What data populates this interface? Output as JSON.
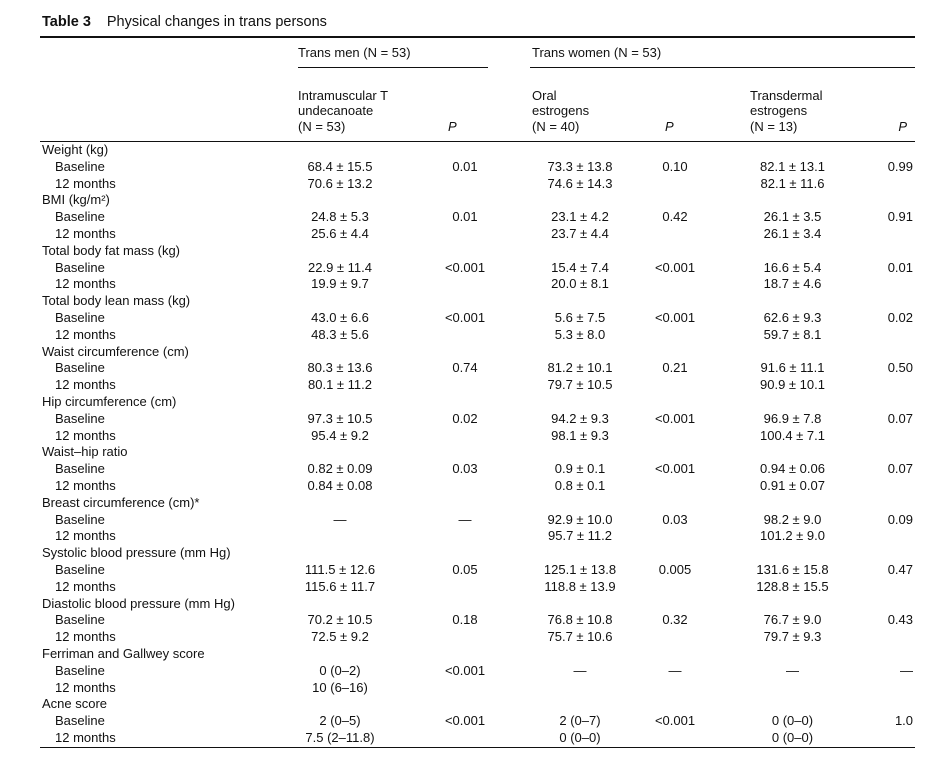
{
  "title": {
    "label": "Table 3",
    "text": "Physical changes in trans persons"
  },
  "header": {
    "groups": [
      {
        "label": "Trans men (N = 53)"
      },
      {
        "label": "Trans women (N = 53)"
      }
    ],
    "columns": [
      {
        "lines": [
          ""
        ],
        "italic": false
      },
      {
        "lines": [
          "Intramuscular T",
          "undecanoate",
          "(N = 53)"
        ],
        "italic": false
      },
      {
        "lines": [
          "P"
        ],
        "italic": true
      },
      {
        "lines": [
          "Oral",
          "estrogens",
          "(N = 40)"
        ],
        "italic": false
      },
      {
        "lines": [
          "P"
        ],
        "italic": true
      },
      {
        "lines": [
          "Transdermal",
          "estrogens",
          "(N = 13)"
        ],
        "italic": false
      },
      {
        "lines": [
          "P"
        ],
        "italic": true
      }
    ]
  },
  "rows": [
    {
      "type": "category",
      "label": "Weight (kg)"
    },
    {
      "type": "data",
      "label": "Baseline",
      "values": [
        "68.4 ± 15.5",
        "0.01",
        "73.3 ± 13.8",
        "0.10",
        "82.1 ± 13.1",
        "0.99"
      ]
    },
    {
      "type": "data",
      "label": "12 months",
      "values": [
        "70.6 ± 13.2",
        "",
        "74.6 ± 14.3",
        "",
        "82.1 ± 11.6",
        ""
      ]
    },
    {
      "type": "category",
      "label": "BMI (kg/m²)"
    },
    {
      "type": "data",
      "label": "Baseline",
      "values": [
        "24.8 ± 5.3",
        "0.01",
        "23.1 ± 4.2",
        "0.42",
        "26.1 ± 3.5",
        "0.91"
      ]
    },
    {
      "type": "data",
      "label": "12 months",
      "values": [
        "25.6 ± 4.4",
        "",
        "23.7 ± 4.4",
        "",
        "26.1 ± 3.4",
        ""
      ]
    },
    {
      "type": "category",
      "label": "Total body fat mass (kg)"
    },
    {
      "type": "data",
      "label": "Baseline",
      "values": [
        "22.9 ± 11.4",
        "<0.001",
        "15.4 ± 7.4",
        "<0.001",
        "16.6 ± 5.4",
        "0.01"
      ]
    },
    {
      "type": "data",
      "label": "12 months",
      "values": [
        "19.9 ± 9.7",
        "",
        "20.0 ± 8.1",
        "",
        "18.7 ± 4.6",
        ""
      ]
    },
    {
      "type": "category",
      "label": "Total body lean mass (kg)"
    },
    {
      "type": "data",
      "label": "Baseline",
      "values": [
        "43.0 ± 6.6",
        "<0.001",
        "5.6 ± 7.5",
        "<0.001",
        "62.6 ± 9.3",
        "0.02"
      ]
    },
    {
      "type": "data",
      "label": "12 months",
      "values": [
        "48.3 ± 5.6",
        "",
        "5.3 ± 8.0",
        "",
        "59.7 ± 8.1",
        ""
      ]
    },
    {
      "type": "category",
      "label": "Waist circumference (cm)"
    },
    {
      "type": "data",
      "label": "Baseline",
      "values": [
        "80.3 ± 13.6",
        "0.74",
        "81.2 ± 10.1",
        "0.21",
        "91.6 ± 11.1",
        "0.50"
      ]
    },
    {
      "type": "data",
      "label": "12 months",
      "values": [
        "80.1 ± 11.2",
        "",
        "79.7 ± 10.5",
        "",
        "90.9 ± 10.1",
        ""
      ]
    },
    {
      "type": "category",
      "label": "Hip circumference (cm)"
    },
    {
      "type": "data",
      "label": "Baseline",
      "values": [
        "97.3 ± 10.5",
        "0.02",
        "94.2 ± 9.3",
        "<0.001",
        "96.9 ± 7.8",
        "0.07"
      ]
    },
    {
      "type": "data",
      "label": "12 months",
      "values": [
        "95.4 ± 9.2",
        "",
        "98.1 ± 9.3",
        "",
        "100.4 ± 7.1",
        ""
      ]
    },
    {
      "type": "category",
      "label": "Waist–hip ratio"
    },
    {
      "type": "data",
      "label": "Baseline",
      "values": [
        "0.82 ± 0.09",
        "0.03",
        "0.9 ± 0.1",
        "<0.001",
        "0.94 ± 0.06",
        "0.07"
      ]
    },
    {
      "type": "data",
      "label": "12 months",
      "values": [
        "0.84 ± 0.08",
        "",
        "0.8 ± 0.1",
        "",
        "0.91 ± 0.07",
        ""
      ]
    },
    {
      "type": "category",
      "label": "Breast circumference (cm)*"
    },
    {
      "type": "data",
      "label": "Baseline",
      "values": [
        "—",
        "—",
        "92.9 ± 10.0",
        "0.03",
        "98.2 ± 9.0",
        "0.09"
      ]
    },
    {
      "type": "data",
      "label": "12 months",
      "values": [
        "",
        "",
        "95.7 ± 11.2",
        "",
        "101.2 ± 9.0",
        ""
      ]
    },
    {
      "type": "category",
      "label": "Systolic blood pressure (mm Hg)"
    },
    {
      "type": "data",
      "label": "Baseline",
      "values": [
        "111.5 ± 12.6",
        "0.05",
        "125.1 ± 13.8",
        "0.005",
        "131.6 ± 15.8",
        "0.47"
      ]
    },
    {
      "type": "data",
      "label": "12 months",
      "values": [
        "115.6 ± 11.7",
        "",
        "118.8 ± 13.9",
        "",
        "128.8 ± 15.5",
        ""
      ]
    },
    {
      "type": "category",
      "label": "Diastolic blood pressure (mm Hg)"
    },
    {
      "type": "data",
      "label": "Baseline",
      "values": [
        "70.2 ± 10.5",
        "0.18",
        "76.8 ± 10.8",
        "0.32",
        "76.7 ± 9.0",
        "0.43"
      ]
    },
    {
      "type": "data",
      "label": "12 months",
      "values": [
        "72.5 ± 9.2",
        "",
        "75.7 ± 10.6",
        "",
        "79.7 ± 9.3",
        ""
      ]
    },
    {
      "type": "category",
      "label": "Ferriman and Gallwey score"
    },
    {
      "type": "data",
      "label": "Baseline",
      "values": [
        "0 (0–2)",
        "<0.001",
        "—",
        "—",
        "—",
        "—"
      ]
    },
    {
      "type": "data",
      "label": "12 months",
      "values": [
        "10 (6–16)",
        "",
        "",
        "",
        "",
        ""
      ]
    },
    {
      "type": "category",
      "label": "Acne score"
    },
    {
      "type": "data",
      "label": "Baseline",
      "values": [
        "2 (0–5)",
        "<0.001",
        "2 (0–7)",
        "<0.001",
        "0 (0–0)",
        "1.0"
      ]
    },
    {
      "type": "data",
      "label": "12 months",
      "values": [
        "7.5 (2–11.8)",
        "",
        "0 (0–0)",
        "",
        "0 (0–0)",
        ""
      ]
    }
  ]
}
